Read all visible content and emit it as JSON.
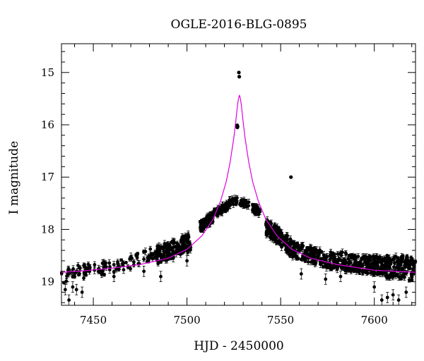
{
  "chart_data": {
    "type": "scatter",
    "title": "OGLE-2016-BLG-0895",
    "xlabel": "HJD - 2450000",
    "ylabel": "I magnitude",
    "xlim": [
      7433,
      7622
    ],
    "ylim": [
      19.45,
      14.45
    ],
    "y_inverted": true,
    "grid": false,
    "x_ticks": [
      7450,
      7500,
      7550,
      7600
    ],
    "x_tick_labels": [
      "7450",
      "7500",
      "7550",
      "7600"
    ],
    "y_ticks": [
      15,
      16,
      17,
      18,
      19
    ],
    "y_tick_labels": [
      "15",
      "16",
      "17",
      "18",
      "19"
    ],
    "colors": {
      "points": "#000000",
      "model": "#e000e0",
      "frame": "#000000"
    },
    "model": {
      "name": "",
      "t0": 7528.0,
      "peak_mag": 15.43,
      "baseline_mag": 18.85,
      "x": [
        7433,
        7445,
        7460,
        7475,
        7490,
        7500,
        7508,
        7514,
        7518,
        7521,
        7523,
        7525,
        7526,
        7527,
        7527.5,
        7528,
        7528.5,
        7529,
        7530,
        7531,
        7533,
        7535,
        7538,
        7542,
        7548,
        7556,
        7566,
        7580,
        7600,
        7622
      ],
      "y": [
        18.82,
        18.79,
        18.74,
        18.67,
        18.55,
        18.38,
        18.12,
        17.8,
        17.45,
        17.08,
        16.72,
        16.25,
        15.95,
        15.62,
        15.5,
        15.43,
        15.5,
        15.62,
        15.95,
        16.25,
        16.72,
        17.08,
        17.45,
        17.8,
        18.12,
        18.38,
        18.55,
        18.67,
        18.78,
        18.82
      ]
    },
    "outliers": [
      {
        "x": 7527.7,
        "y": 15.0
      },
      {
        "x": 7527.9,
        "y": 15.08
      },
      {
        "x": 7526.8,
        "y": 16.01
      },
      {
        "x": 7527.0,
        "y": 16.03
      },
      {
        "x": 7526.9,
        "y": 16.05
      },
      {
        "x": 7555.5,
        "y": 17.0
      }
    ],
    "lightcurve_envelope": [
      {
        "x0": 7433,
        "x1": 7448,
        "y0": 18.9,
        "y1": 18.75,
        "spread": 0.3,
        "n": 36
      },
      {
        "x0": 7448,
        "x1": 7470,
        "y0": 18.78,
        "y1": 18.68,
        "spread": 0.25,
        "n": 40
      },
      {
        "x0": 7470,
        "x1": 7484,
        "y0": 18.62,
        "y1": 18.45,
        "spread": 0.25,
        "n": 30
      },
      {
        "x0": 7484,
        "x1": 7502,
        "y0": 18.5,
        "y1": 18.25,
        "spread": 0.35,
        "n": 150
      },
      {
        "x0": 7507,
        "x1": 7514,
        "y0": 17.95,
        "y1": 17.75,
        "spread": 0.2,
        "n": 90
      },
      {
        "x0": 7514,
        "x1": 7522,
        "y0": 17.7,
        "y1": 17.55,
        "spread": 0.15,
        "n": 60
      },
      {
        "x0": 7522,
        "x1": 7527,
        "y0": 17.5,
        "y1": 17.45,
        "spread": 0.12,
        "n": 30
      },
      {
        "x0": 7528,
        "x1": 7533,
        "y0": 17.48,
        "y1": 17.52,
        "spread": 0.12,
        "n": 30
      },
      {
        "x0": 7535,
        "x1": 7539,
        "y0": 17.6,
        "y1": 17.65,
        "spread": 0.15,
        "n": 40
      },
      {
        "x0": 7542,
        "x1": 7550,
        "y0": 17.95,
        "y1": 18.15,
        "spread": 0.3,
        "n": 100
      },
      {
        "x0": 7550,
        "x1": 7556,
        "y0": 18.2,
        "y1": 18.35,
        "spread": 0.35,
        "n": 60
      },
      {
        "x0": 7556,
        "x1": 7572,
        "y0": 18.38,
        "y1": 18.55,
        "spread": 0.3,
        "n": 110
      },
      {
        "x0": 7572,
        "x1": 7590,
        "y0": 18.55,
        "y1": 18.65,
        "spread": 0.35,
        "n": 120
      },
      {
        "x0": 7590,
        "x1": 7605,
        "y0": 18.65,
        "y1": 18.7,
        "spread": 0.35,
        "n": 120
      },
      {
        "x0": 7605,
        "x1": 7622,
        "y0": 18.7,
        "y1": 18.75,
        "spread": 0.45,
        "n": 130
      }
    ],
    "sparse_low_points": [
      {
        "x": 7435,
        "y": 19.15
      },
      {
        "x": 7437,
        "y": 19.35
      },
      {
        "x": 7439,
        "y": 19.1
      },
      {
        "x": 7441,
        "y": 19.15
      },
      {
        "x": 7444,
        "y": 19.2
      },
      {
        "x": 7461,
        "y": 18.9
      },
      {
        "x": 7477,
        "y": 18.8
      },
      {
        "x": 7486,
        "y": 18.9
      },
      {
        "x": 7500,
        "y": 18.6
      },
      {
        "x": 7561,
        "y": 18.85
      },
      {
        "x": 7574,
        "y": 18.95
      },
      {
        "x": 7582,
        "y": 18.9
      },
      {
        "x": 7600,
        "y": 19.1
      },
      {
        "x": 7604,
        "y": 19.35
      },
      {
        "x": 7607,
        "y": 19.3
      },
      {
        "x": 7610,
        "y": 19.25
      },
      {
        "x": 7613,
        "y": 19.35
      },
      {
        "x": 7617,
        "y": 19.2
      }
    ]
  }
}
